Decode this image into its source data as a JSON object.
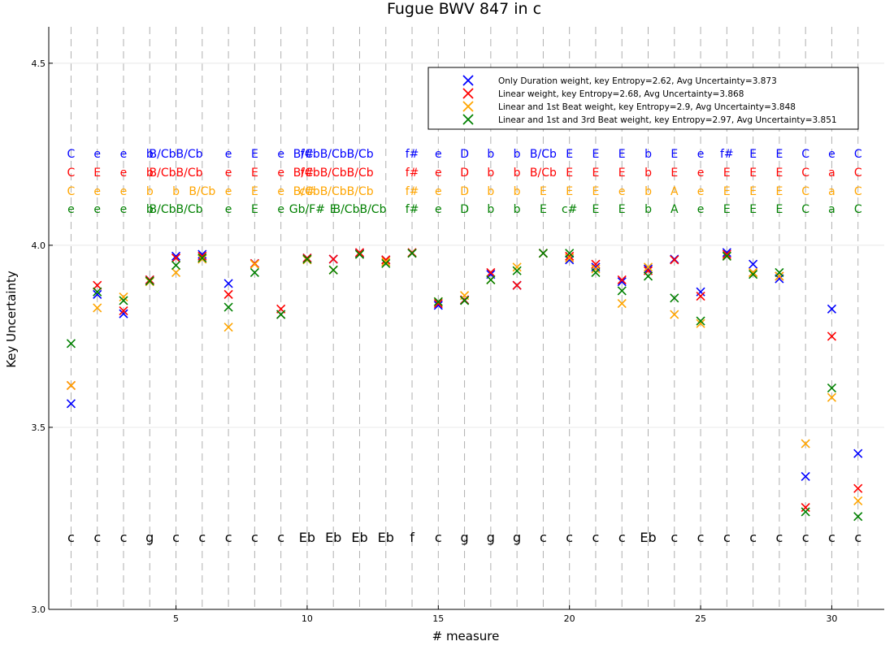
{
  "chart_data": {
    "type": "scatter",
    "title": "Fugue BWV 847 in c",
    "xlabel": "# measure",
    "ylabel": "Key Uncertainty",
    "xlim": [
      0.15,
      32.0
    ],
    "ylim": [
      3.0,
      4.6
    ],
    "xticks": [
      5,
      10,
      15,
      20,
      25,
      30
    ],
    "yticks": [
      3.0,
      3.5,
      4.0,
      4.5
    ],
    "ytick_labels": [
      "3.0",
      "3.5",
      "4.0",
      "4.5"
    ],
    "grid": true,
    "legend_position": "top-right",
    "x": [
      1,
      2,
      3,
      4,
      5,
      6,
      7,
      8,
      9,
      10,
      11,
      12,
      13,
      14,
      15,
      16,
      17,
      18,
      19,
      20,
      21,
      22,
      23,
      24,
      25,
      26,
      27,
      28,
      29,
      30,
      31
    ],
    "series": [
      {
        "name": "Only Duration weight, key Entropy=2.62, Avg Uncertainty=3.873",
        "color": "#0000ff",
        "values": [
          3.565,
          3.865,
          3.812,
          3.905,
          3.97,
          3.975,
          3.895,
          3.95,
          3.81,
          3.965,
          3.962,
          3.978,
          3.96,
          3.978,
          3.835,
          3.85,
          3.92,
          3.89,
          3.978,
          3.96,
          3.94,
          3.9,
          3.935,
          3.962,
          3.872,
          3.98,
          3.948,
          3.908,
          3.365,
          3.825,
          3.428
        ],
        "keys": [
          "C",
          "e",
          "e",
          "b",
          "B/CbB/Cb",
          "",
          "e",
          "E",
          "e",
          "f#",
          "B/CbB/CbB/Cb",
          "",
          "",
          "f#",
          "e",
          "D",
          "b",
          "b",
          "B/Cb",
          "E",
          "E",
          "E",
          "b",
          "E",
          "e",
          "f#",
          "E",
          "E",
          "C",
          "e",
          "C"
        ]
      },
      {
        "name": "Linear weight, key Entropy=2.68, Avg Uncertainty=3.868",
        "color": "#ff0000",
        "values": [
          3.615,
          3.89,
          3.82,
          3.905,
          3.965,
          3.97,
          3.865,
          3.95,
          3.825,
          3.965,
          3.962,
          3.98,
          3.96,
          3.98,
          3.84,
          3.85,
          3.925,
          3.89,
          3.978,
          3.97,
          3.948,
          3.905,
          3.93,
          3.96,
          3.86,
          3.975,
          3.925,
          3.915,
          3.28,
          3.75,
          3.332
        ],
        "keys": [
          "C",
          "E",
          "e",
          "b",
          "B/CbB/Cb",
          "",
          "e",
          "E",
          "e",
          "f#",
          "B/CbB/CbB/Cb",
          "",
          "",
          "f#",
          "e",
          "D",
          "b",
          "b",
          "B/Cb",
          "E",
          "E",
          "E",
          "b",
          "E",
          "e",
          "E",
          "E",
          "E",
          "C",
          "a",
          "C"
        ]
      },
      {
        "name": "Linear and 1st Beat weight, key Entropy=2.9, Avg Uncertainty=3.848",
        "color": "#ffa500",
        "values": [
          3.615,
          3.828,
          3.858,
          3.9,
          3.925,
          3.962,
          3.775,
          3.948,
          3.81,
          3.96,
          3.932,
          3.975,
          3.955,
          3.978,
          3.845,
          3.862,
          3.905,
          3.94,
          3.978,
          3.965,
          3.935,
          3.84,
          3.94,
          3.81,
          3.785,
          3.97,
          3.925,
          3.915,
          3.455,
          3.582,
          3.298
        ],
        "keys": [
          "C",
          "e",
          "e",
          "b",
          "b",
          "B/Cb",
          "e",
          "E",
          "e",
          "c#",
          "B/CbB/CbB/Cb",
          "",
          "",
          "f#",
          "e",
          "D",
          "b",
          "b",
          "E",
          "E",
          "E",
          "e",
          "b",
          "A",
          "e",
          "E",
          "E",
          "E",
          "C",
          "a",
          "C"
        ]
      },
      {
        "name": "Linear and 1st and 3rd Beat weight, key Entropy=2.97, Avg Uncertainty=3.851",
        "color": "#008000",
        "values": [
          3.73,
          3.872,
          3.848,
          3.902,
          3.945,
          3.965,
          3.83,
          3.925,
          3.81,
          3.962,
          3.932,
          3.975,
          3.95,
          3.978,
          3.845,
          3.848,
          3.905,
          3.93,
          3.978,
          3.978,
          3.925,
          3.875,
          3.915,
          3.855,
          3.792,
          3.97,
          3.92,
          3.925,
          3.268,
          3.608,
          3.255
        ],
        "keys": [
          "e",
          "e",
          "e",
          "b",
          "B/CbB/Cb",
          "",
          "e",
          "E",
          "e",
          "Gb/F#",
          "E",
          "B/CbB/Cb",
          "",
          "f#",
          "e",
          "D",
          "b",
          "b",
          "E",
          "c#",
          "E",
          "E",
          "b",
          "A",
          "e",
          "E",
          "E",
          "E",
          "C",
          "a",
          "C"
        ]
      }
    ],
    "ground_truth_keys": [
      "c",
      "c",
      "c",
      "g",
      "c",
      "c",
      "c",
      "c",
      "c",
      "Eb",
      "Eb",
      "Eb",
      "Eb",
      "f",
      "c",
      "g",
      "g",
      "g",
      "c",
      "c",
      "c",
      "c",
      "Eb",
      "c",
      "c",
      "c",
      "c",
      "c",
      "c",
      "c",
      "c"
    ]
  }
}
